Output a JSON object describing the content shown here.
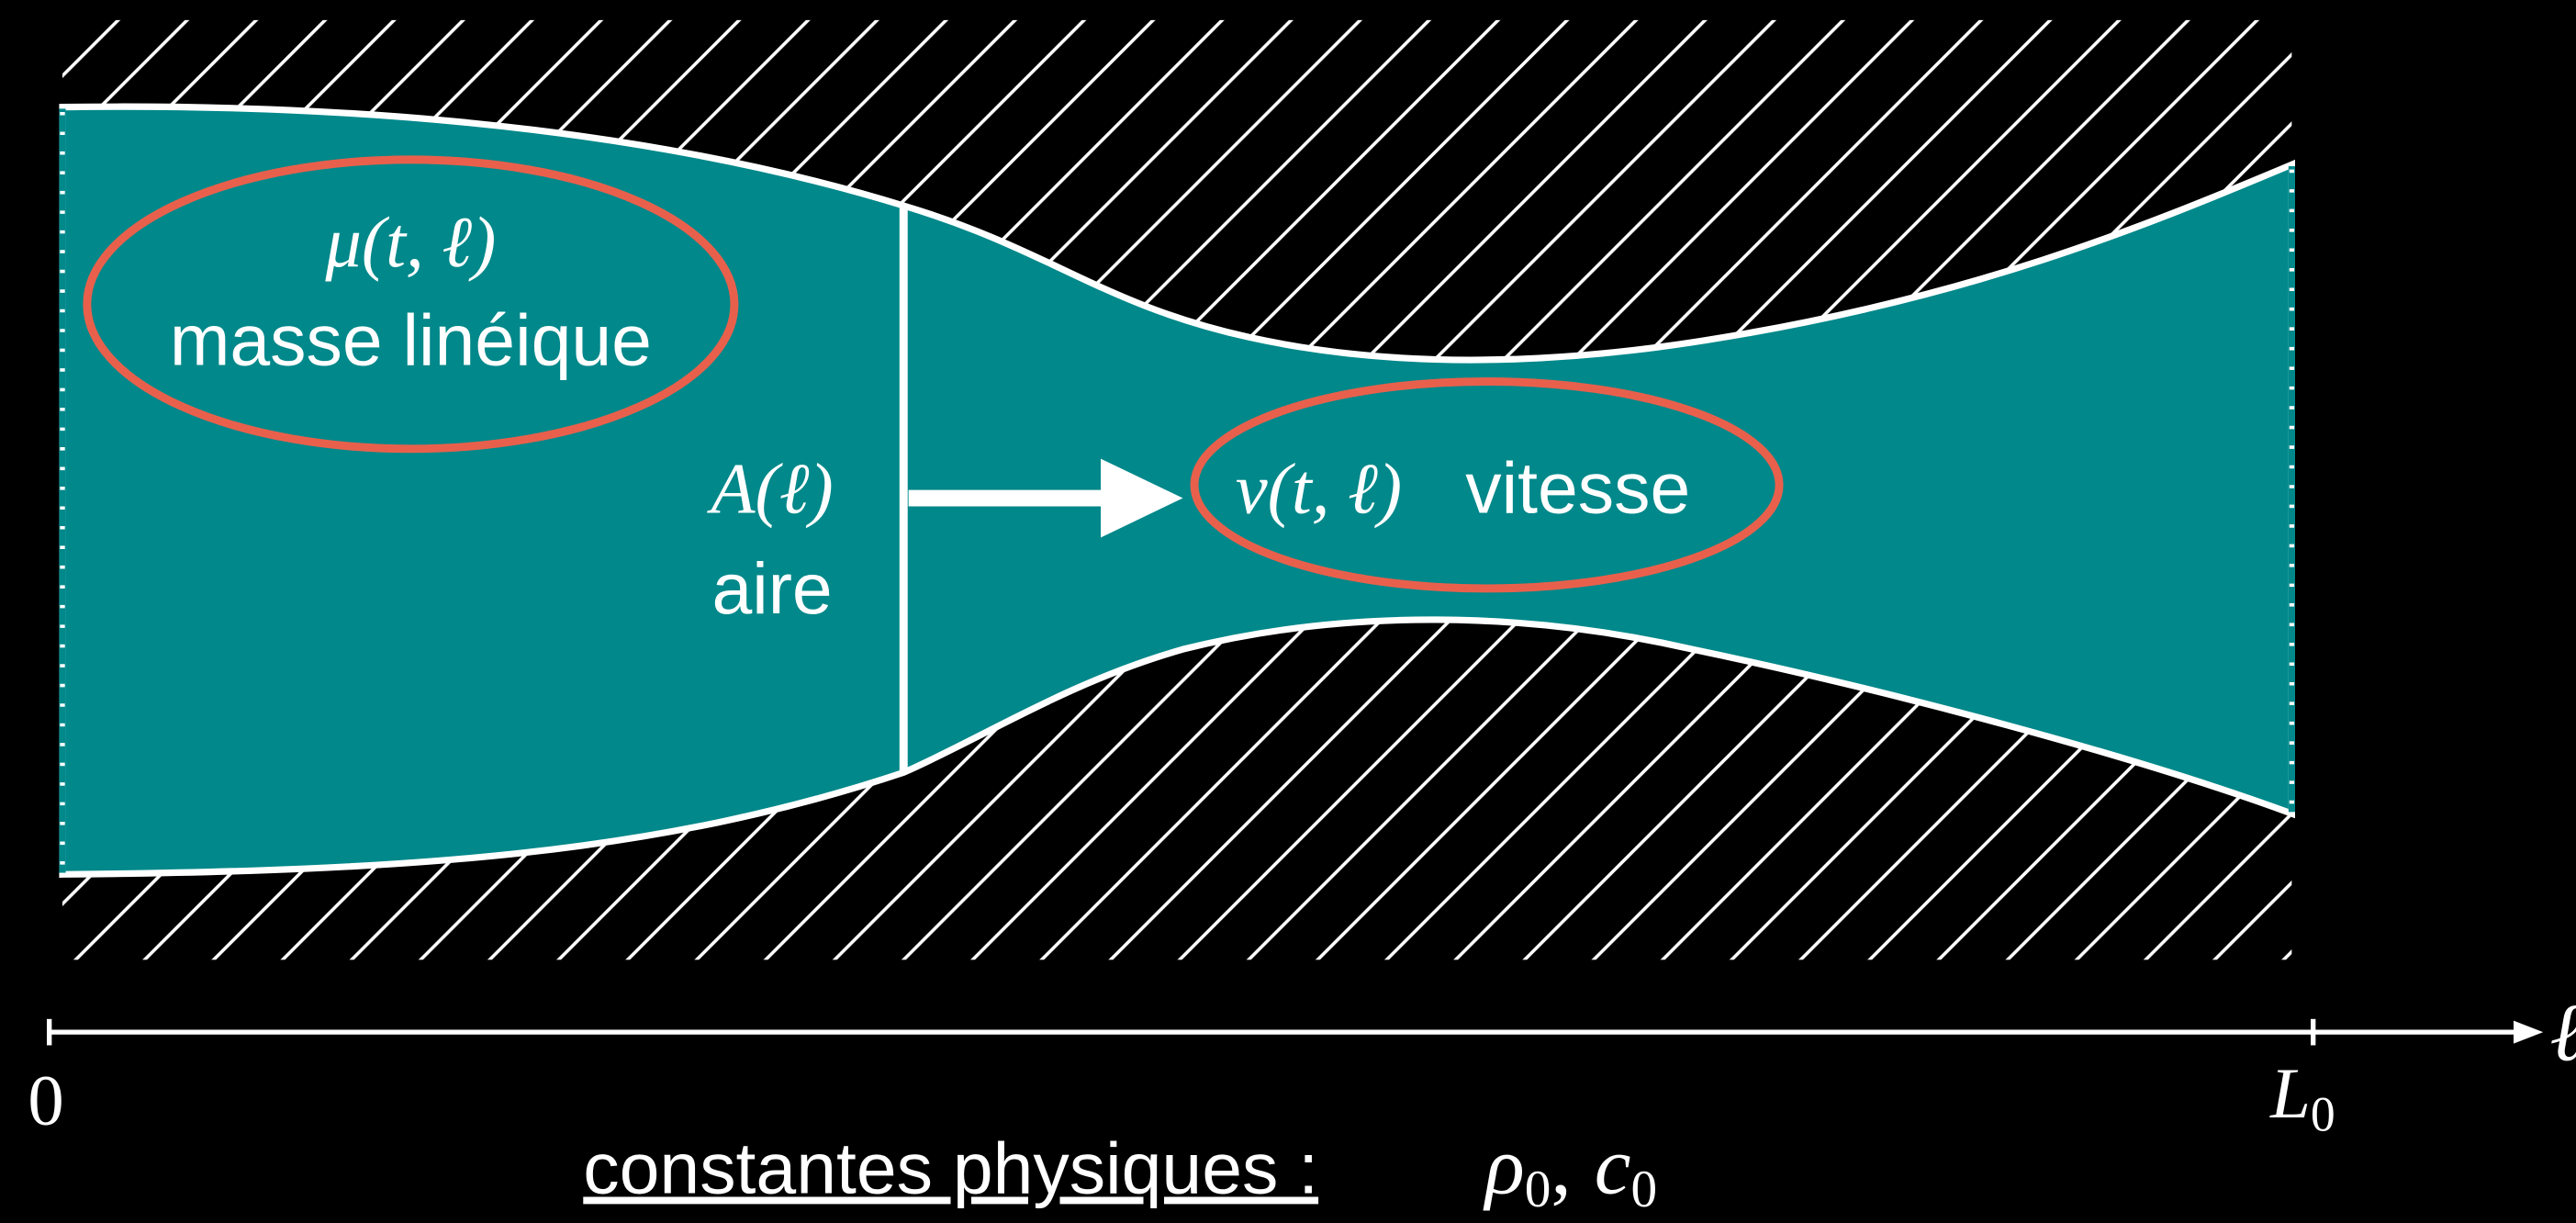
{
  "labels": {
    "mu": "μ(t, ℓ)",
    "mass": "masse linéique",
    "area_symbol": "A(ℓ)",
    "area": "aire",
    "v": "v(t, ℓ)",
    "velocity": "vitesse"
  },
  "axis": {
    "start": "0",
    "end": "L",
    "end_sub": "0",
    "variable": "ℓ"
  },
  "footer": {
    "text": "constantes physiques :",
    "rho": "ρ",
    "rho_sub": "0",
    "sep": ",",
    "c": "c",
    "c_sub": "0"
  }
}
